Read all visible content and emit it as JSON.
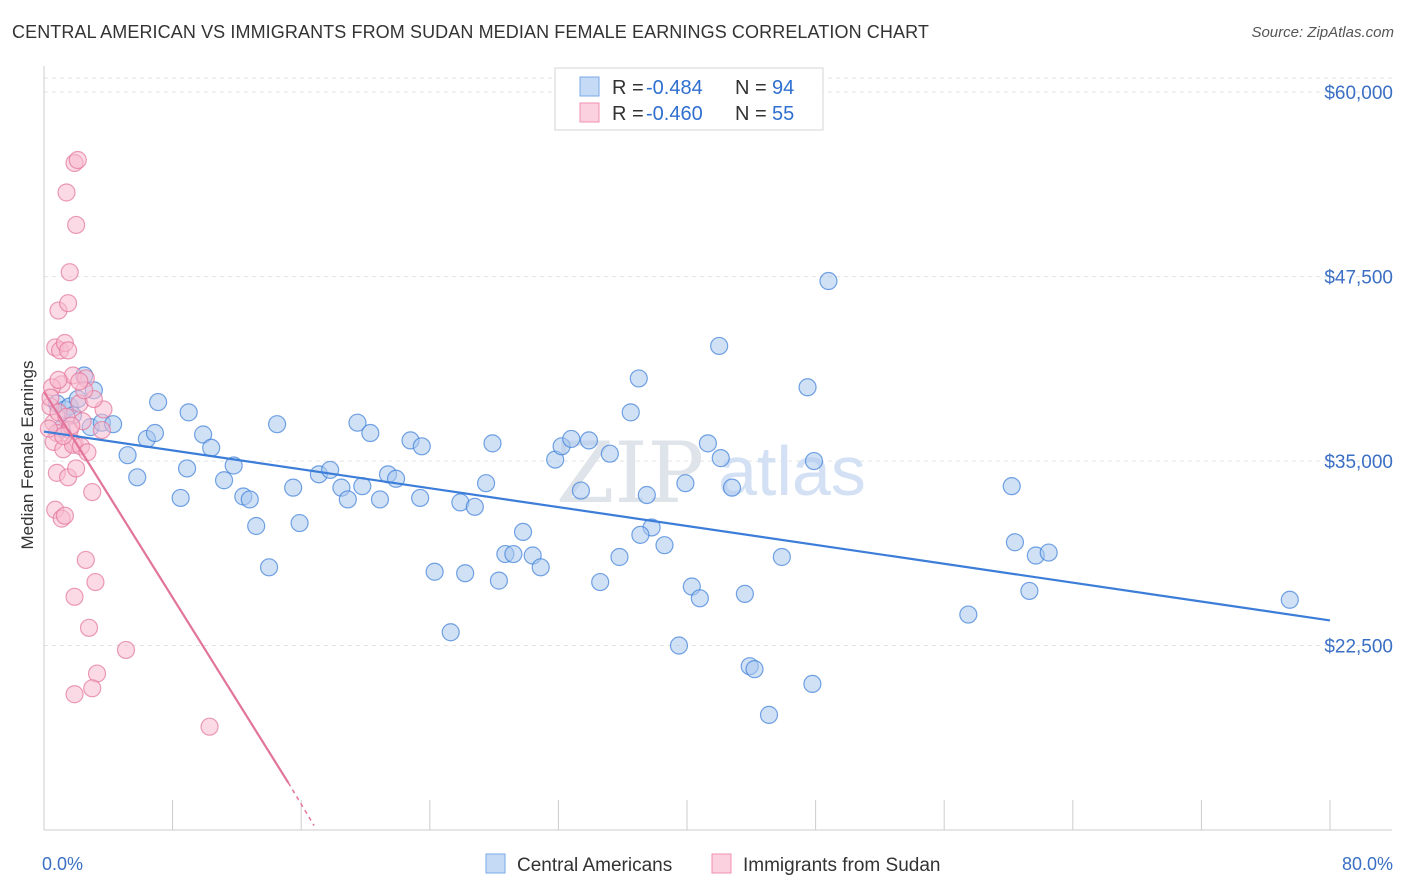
{
  "title": "CENTRAL AMERICAN VS IMMIGRANTS FROM SUDAN MEDIAN FEMALE EARNINGS CORRELATION CHART",
  "source": "Source: ZipAtlas.com",
  "watermark": {
    "zip": "ZIP",
    "atlas": "atlas"
  },
  "legend": {
    "rows": [
      {
        "r_label": "R =",
        "r_value": "-0.484",
        "n_label": "N =",
        "n_value": "94",
        "color": "#7aaae6",
        "fill": "#c5daf5"
      },
      {
        "r_label": "R =",
        "r_value": "-0.460",
        "n_label": "N =",
        "n_value": "55",
        "color": "#f08fb0",
        "fill": "#fbd0df"
      }
    ]
  },
  "chart_data": {
    "type": "scatter",
    "title": "CENTRAL AMERICAN VS IMMIGRANTS FROM SUDAN MEDIAN FEMALE EARNINGS CORRELATION CHART",
    "xlabel": "",
    "ylabel": "Median Female Earnings",
    "xlim": [
      0,
      80
    ],
    "ylim": [
      10000,
      61500
    ],
    "x_tick_labels": [
      "0.0%",
      "80.0%"
    ],
    "y_ticks": [
      22500,
      35000,
      47500,
      60000
    ],
    "y_tick_labels": [
      "$22,500",
      "$35,000",
      "$47,500",
      "$60,000"
    ],
    "grid": true,
    "legend_position": "top-center",
    "series": [
      {
        "name": "Central Americans",
        "color": "#3b7dd8",
        "fill": "#aac8ef",
        "trendline": [
          [
            0.0,
            37000
          ],
          [
            80.0,
            24200
          ]
        ],
        "points": [
          [
            0.8,
            38900
          ],
          [
            1.3,
            38500
          ],
          [
            1.6,
            38700
          ],
          [
            2.1,
            39200
          ],
          [
            2.5,
            40800
          ],
          [
            3.1,
            39800
          ],
          [
            1.8,
            38100
          ],
          [
            2.9,
            37300
          ],
          [
            3.6,
            37600
          ],
          [
            4.3,
            37500
          ],
          [
            1.1,
            37200
          ],
          [
            5.2,
            35400
          ],
          [
            5.8,
            33900
          ],
          [
            6.4,
            36500
          ],
          [
            7.1,
            39000
          ],
          [
            6.9,
            36900
          ],
          [
            9.0,
            38300
          ],
          [
            8.5,
            32500
          ],
          [
            8.9,
            34500
          ],
          [
            9.9,
            36800
          ],
          [
            10.4,
            35900
          ],
          [
            11.2,
            33700
          ],
          [
            11.8,
            34700
          ],
          [
            12.4,
            32600
          ],
          [
            12.8,
            32400
          ],
          [
            13.2,
            30600
          ],
          [
            14.5,
            37500
          ],
          [
            14.0,
            27800
          ],
          [
            15.5,
            33200
          ],
          [
            15.9,
            30800
          ],
          [
            17.1,
            34100
          ],
          [
            17.8,
            34400
          ],
          [
            18.5,
            33200
          ],
          [
            18.9,
            32400
          ],
          [
            19.5,
            37600
          ],
          [
            20.3,
            36900
          ],
          [
            20.9,
            32400
          ],
          [
            21.4,
            34100
          ],
          [
            21.9,
            33800
          ],
          [
            22.8,
            36400
          ],
          [
            23.5,
            36000
          ],
          [
            24.3,
            27500
          ],
          [
            25.3,
            23400
          ],
          [
            25.9,
            32200
          ],
          [
            26.2,
            27400
          ],
          [
            26.8,
            31900
          ],
          [
            27.5,
            33500
          ],
          [
            27.9,
            36200
          ],
          [
            28.3,
            26900
          ],
          [
            28.7,
            28700
          ],
          [
            29.2,
            28700
          ],
          [
            29.8,
            30200
          ],
          [
            30.4,
            28600
          ],
          [
            30.9,
            27800
          ],
          [
            31.8,
            35100
          ],
          [
            32.2,
            36000
          ],
          [
            32.8,
            36500
          ],
          [
            33.4,
            33000
          ],
          [
            33.9,
            36400
          ],
          [
            34.6,
            26800
          ],
          [
            35.2,
            35500
          ],
          [
            35.8,
            28500
          ],
          [
            36.5,
            38300
          ],
          [
            37.0,
            40600
          ],
          [
            37.5,
            32700
          ],
          [
            37.8,
            30500
          ],
          [
            38.6,
            29300
          ],
          [
            39.5,
            22500
          ],
          [
            39.9,
            33500
          ],
          [
            40.3,
            26500
          ],
          [
            40.8,
            25700
          ],
          [
            41.3,
            36200
          ],
          [
            42.1,
            35200
          ],
          [
            42.8,
            33200
          ],
          [
            43.6,
            26000
          ],
          [
            43.9,
            21100
          ],
          [
            44.2,
            20900
          ],
          [
            45.1,
            17800
          ],
          [
            45.9,
            28500
          ],
          [
            47.5,
            40000
          ],
          [
            47.9,
            35000
          ],
          [
            47.8,
            19900
          ],
          [
            48.8,
            47200
          ],
          [
            57.5,
            24600
          ],
          [
            60.2,
            33300
          ],
          [
            60.4,
            29500
          ],
          [
            61.3,
            26200
          ],
          [
            61.7,
            28600
          ],
          [
            62.5,
            28800
          ],
          [
            77.5,
            25600
          ],
          [
            23.4,
            32500
          ],
          [
            19.8,
            33300
          ],
          [
            42.0,
            42800
          ],
          [
            37.1,
            30000
          ]
        ]
      },
      {
        "name": "Immigrants from Sudan",
        "color": "#e2739a",
        "fill": "#f7bcd0",
        "trendline": [
          [
            0.0,
            39700
          ],
          [
            15.2,
            13200
          ]
        ],
        "trendline_dashed": [
          [
            15.2,
            13200
          ],
          [
            16.8,
            10300
          ]
        ],
        "points": [
          [
            0.4,
            38700
          ],
          [
            0.6,
            37600
          ],
          [
            0.8,
            36900
          ],
          [
            0.9,
            38300
          ],
          [
            1.1,
            40200
          ],
          [
            1.4,
            38000
          ],
          [
            1.6,
            37100
          ],
          [
            1.9,
            36200
          ],
          [
            2.2,
            38900
          ],
          [
            0.5,
            40000
          ],
          [
            0.7,
            42700
          ],
          [
            1.0,
            42500
          ],
          [
            1.3,
            43000
          ],
          [
            1.5,
            42500
          ],
          [
            1.8,
            40800
          ],
          [
            2.6,
            40600
          ],
          [
            0.9,
            45200
          ],
          [
            1.5,
            45700
          ],
          [
            1.6,
            47800
          ],
          [
            2.0,
            51000
          ],
          [
            1.9,
            55200
          ],
          [
            1.4,
            53200
          ],
          [
            2.1,
            55400
          ],
          [
            0.6,
            36300
          ],
          [
            1.2,
            35800
          ],
          [
            1.8,
            36100
          ],
          [
            2.4,
            37700
          ],
          [
            0.8,
            34200
          ],
          [
            1.5,
            33900
          ],
          [
            2.0,
            34500
          ],
          [
            2.3,
            36000
          ],
          [
            0.7,
            31700
          ],
          [
            1.1,
            31100
          ],
          [
            1.3,
            31300
          ],
          [
            3.0,
            32900
          ],
          [
            3.6,
            37100
          ],
          [
            3.7,
            38500
          ],
          [
            2.7,
            35600
          ],
          [
            3.1,
            39200
          ],
          [
            2.6,
            28300
          ],
          [
            1.9,
            25800
          ],
          [
            3.2,
            26800
          ],
          [
            2.8,
            23700
          ],
          [
            3.3,
            20600
          ],
          [
            3.0,
            19600
          ],
          [
            1.9,
            19200
          ],
          [
            5.1,
            22200
          ],
          [
            10.3,
            17000
          ],
          [
            0.3,
            37200
          ],
          [
            0.4,
            39300
          ],
          [
            1.7,
            37400
          ],
          [
            2.5,
            39800
          ],
          [
            0.9,
            40500
          ],
          [
            1.2,
            36700
          ],
          [
            2.2,
            40400
          ]
        ]
      }
    ]
  },
  "bottom_legend": [
    {
      "label": "Central Americans",
      "fill": "#c5daf5",
      "stroke": "#7aaae6"
    },
    {
      "label": "Immigrants from Sudan",
      "fill": "#fbd0df",
      "stroke": "#f08fb0"
    }
  ]
}
